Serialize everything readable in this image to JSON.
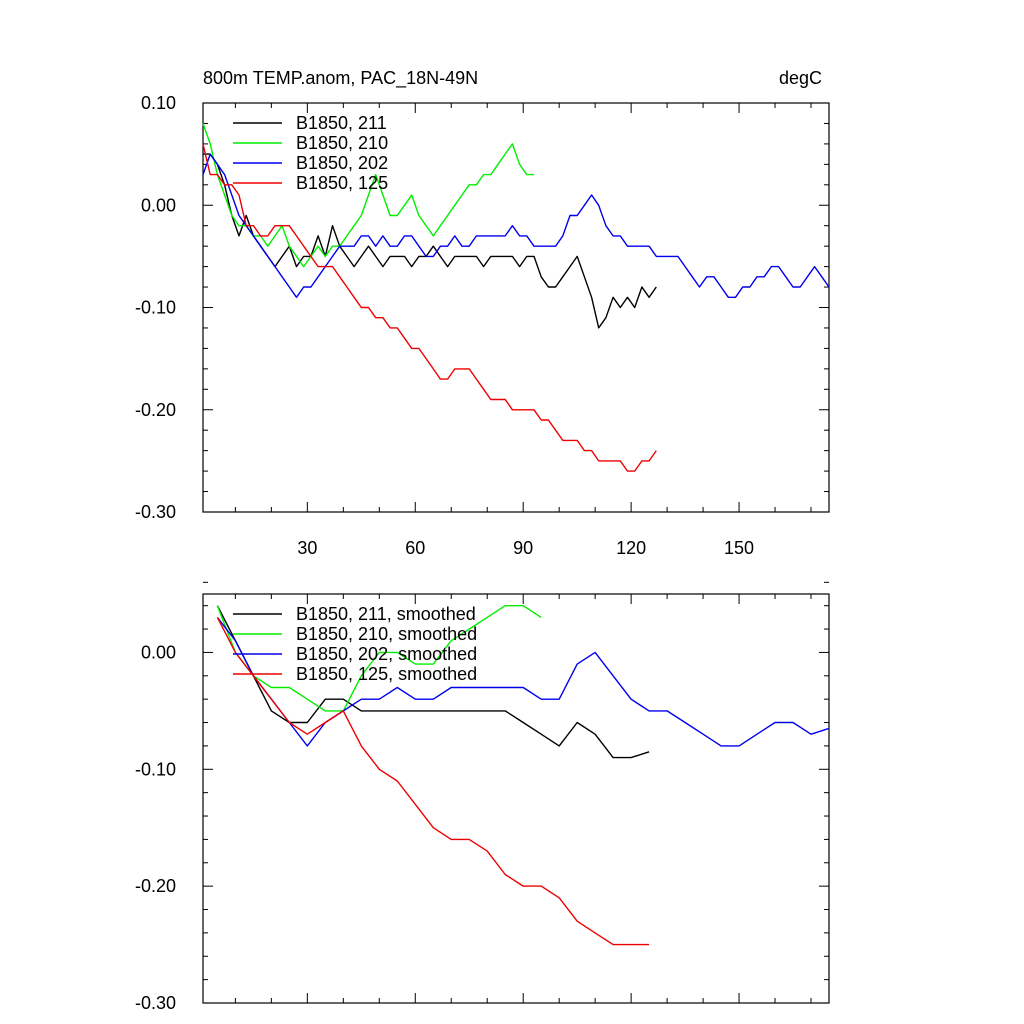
{
  "chart_data": [
    {
      "type": "line",
      "title": "800m TEMP.anom, PAC_18N-49N",
      "units": "degC",
      "xlim": [
        1,
        175
      ],
      "ylim": [
        -0.3,
        0.1
      ],
      "xticks": [
        30,
        60,
        90,
        120,
        150
      ],
      "yticks": [
        0.1,
        0.0,
        -0.1,
        -0.2,
        -0.3
      ],
      "ytick_labels": [
        "0.10",
        "0.00",
        "-0.10",
        "-0.20",
        "-0.30"
      ],
      "series": [
        {
          "name": "B1850, 211",
          "color": "#000000",
          "x": [
            1,
            3,
            5,
            7,
            9,
            11,
            13,
            15,
            17,
            19,
            21,
            23,
            25,
            27,
            29,
            31,
            33,
            35,
            37,
            39,
            41,
            43,
            45,
            47,
            49,
            51,
            53,
            55,
            57,
            59,
            61,
            63,
            65,
            67,
            69,
            71,
            73,
            75,
            77,
            79,
            81,
            83,
            85,
            87,
            89,
            91,
            93,
            95,
            97,
            99,
            101,
            103,
            105,
            107,
            109,
            111,
            113,
            115,
            117,
            119,
            121,
            123,
            125,
            127
          ],
          "y": [
            0.05,
            0.05,
            0.04,
            0.02,
            -0.01,
            -0.03,
            -0.01,
            -0.03,
            -0.04,
            -0.05,
            -0.06,
            -0.05,
            -0.04,
            -0.06,
            -0.05,
            -0.05,
            -0.03,
            -0.05,
            -0.02,
            -0.04,
            -0.05,
            -0.06,
            -0.05,
            -0.04,
            -0.05,
            -0.06,
            -0.05,
            -0.05,
            -0.05,
            -0.06,
            -0.05,
            -0.05,
            -0.04,
            -0.05,
            -0.06,
            -0.05,
            -0.05,
            -0.05,
            -0.05,
            -0.06,
            -0.05,
            -0.05,
            -0.05,
            -0.05,
            -0.06,
            -0.05,
            -0.05,
            -0.07,
            -0.08,
            -0.08,
            -0.07,
            -0.06,
            -0.05,
            -0.07,
            -0.09,
            -0.12,
            -0.11,
            -0.09,
            -0.1,
            -0.09,
            -0.1,
            -0.08,
            -0.09,
            -0.08
          ]
        },
        {
          "name": "B1850, 210",
          "color": "#00ee00",
          "x": [
            1,
            3,
            5,
            7,
            9,
            11,
            13,
            15,
            17,
            19,
            21,
            23,
            25,
            27,
            29,
            31,
            33,
            35,
            37,
            39,
            41,
            43,
            45,
            47,
            49,
            51,
            53,
            55,
            57,
            59,
            61,
            63,
            65,
            67,
            69,
            71,
            73,
            75,
            77,
            79,
            81,
            83,
            85,
            87,
            89,
            91,
            93
          ],
          "y": [
            0.08,
            0.06,
            0.03,
            0.01,
            -0.01,
            -0.02,
            -0.02,
            -0.03,
            -0.03,
            -0.04,
            -0.03,
            -0.02,
            -0.04,
            -0.05,
            -0.06,
            -0.05,
            -0.04,
            -0.05,
            -0.04,
            -0.04,
            -0.03,
            -0.02,
            -0.01,
            0.01,
            0.03,
            0.01,
            -0.01,
            -0.01,
            0.0,
            0.01,
            -0.01,
            -0.02,
            -0.03,
            -0.02,
            -0.01,
            0.0,
            0.01,
            0.02,
            0.02,
            0.03,
            0.03,
            0.04,
            0.05,
            0.06,
            0.04,
            0.03,
            0.03
          ]
        },
        {
          "name": "B1850, 202",
          "color": "#0000ee",
          "x": [
            1,
            3,
            5,
            7,
            9,
            11,
            13,
            15,
            17,
            19,
            21,
            23,
            25,
            27,
            29,
            31,
            33,
            35,
            37,
            39,
            41,
            43,
            45,
            47,
            49,
            51,
            53,
            55,
            57,
            59,
            61,
            63,
            65,
            67,
            69,
            71,
            73,
            75,
            77,
            79,
            81,
            83,
            85,
            87,
            89,
            91,
            93,
            95,
            97,
            99,
            101,
            103,
            105,
            107,
            109,
            111,
            113,
            115,
            117,
            119,
            121,
            123,
            125,
            127,
            129,
            131,
            133,
            135,
            137,
            139,
            141,
            143,
            145,
            147,
            149,
            151,
            153,
            155,
            157,
            159,
            161,
            163,
            165,
            167,
            169,
            171,
            173,
            175
          ],
          "y": [
            0.03,
            0.05,
            0.04,
            0.03,
            0.01,
            -0.01,
            -0.02,
            -0.03,
            -0.04,
            -0.05,
            -0.06,
            -0.07,
            -0.08,
            -0.09,
            -0.08,
            -0.08,
            -0.07,
            -0.06,
            -0.05,
            -0.04,
            -0.04,
            -0.04,
            -0.03,
            -0.03,
            -0.04,
            -0.03,
            -0.04,
            -0.04,
            -0.03,
            -0.03,
            -0.04,
            -0.05,
            -0.05,
            -0.04,
            -0.04,
            -0.03,
            -0.04,
            -0.04,
            -0.03,
            -0.03,
            -0.03,
            -0.03,
            -0.03,
            -0.02,
            -0.03,
            -0.03,
            -0.04,
            -0.04,
            -0.04,
            -0.04,
            -0.03,
            -0.01,
            -0.01,
            0.0,
            0.01,
            0.0,
            -0.02,
            -0.03,
            -0.03,
            -0.04,
            -0.04,
            -0.04,
            -0.04,
            -0.05,
            -0.05,
            -0.05,
            -0.05,
            -0.06,
            -0.07,
            -0.08,
            -0.07,
            -0.07,
            -0.08,
            -0.09,
            -0.09,
            -0.08,
            -0.08,
            -0.07,
            -0.07,
            -0.06,
            -0.06,
            -0.07,
            -0.08,
            -0.08,
            -0.07,
            -0.06,
            -0.07,
            -0.08
          ]
        },
        {
          "name": "B1850, 125",
          "color": "#ee0000",
          "x": [
            1,
            3,
            5,
            7,
            9,
            11,
            13,
            15,
            17,
            19,
            21,
            23,
            25,
            27,
            29,
            31,
            33,
            35,
            37,
            39,
            41,
            43,
            45,
            47,
            49,
            51,
            53,
            55,
            57,
            59,
            61,
            63,
            65,
            67,
            69,
            71,
            73,
            75,
            77,
            79,
            81,
            83,
            85,
            87,
            89,
            91,
            93,
            95,
            97,
            99,
            101,
            103,
            105,
            107,
            109,
            111,
            113,
            115,
            117,
            119,
            121,
            123,
            125,
            127
          ],
          "y": [
            0.06,
            0.03,
            0.03,
            0.02,
            0.02,
            0.01,
            -0.02,
            -0.02,
            -0.03,
            -0.03,
            -0.02,
            -0.02,
            -0.02,
            -0.03,
            -0.04,
            -0.05,
            -0.06,
            -0.06,
            -0.06,
            -0.07,
            -0.08,
            -0.09,
            -0.1,
            -0.1,
            -0.11,
            -0.11,
            -0.12,
            -0.12,
            -0.13,
            -0.14,
            -0.14,
            -0.15,
            -0.16,
            -0.17,
            -0.17,
            -0.16,
            -0.16,
            -0.16,
            -0.17,
            -0.18,
            -0.19,
            -0.19,
            -0.19,
            -0.2,
            -0.2,
            -0.2,
            -0.2,
            -0.21,
            -0.21,
            -0.22,
            -0.23,
            -0.23,
            -0.23,
            -0.24,
            -0.24,
            -0.25,
            -0.25,
            -0.25,
            -0.25,
            -0.26,
            -0.26,
            -0.25,
            -0.25,
            -0.24
          ]
        }
      ]
    },
    {
      "type": "line",
      "xlim": [
        1,
        175
      ],
      "ylim": [
        -0.3,
        0.05
      ],
      "xticks": [
        30,
        60,
        90,
        120,
        150
      ],
      "yticks": [
        0.0,
        -0.1,
        -0.2,
        -0.3
      ],
      "ytick_labels": [
        "0.00",
        "-0.10",
        "-0.20",
        "-0.30"
      ],
      "series": [
        {
          "name": "B1850, 211, smoothed",
          "color": "#000000",
          "x": [
            5,
            10,
            15,
            20,
            25,
            30,
            35,
            40,
            45,
            50,
            55,
            60,
            65,
            70,
            75,
            80,
            85,
            90,
            95,
            100,
            105,
            110,
            115,
            120,
            125
          ],
          "y": [
            0.04,
            0.01,
            -0.02,
            -0.05,
            -0.06,
            -0.06,
            -0.04,
            -0.04,
            -0.05,
            -0.05,
            -0.05,
            -0.05,
            -0.05,
            -0.05,
            -0.05,
            -0.05,
            -0.05,
            -0.06,
            -0.07,
            -0.08,
            -0.06,
            -0.07,
            -0.09,
            -0.09,
            -0.085
          ]
        },
        {
          "name": "B1850, 210, smoothed",
          "color": "#00ee00",
          "x": [
            5,
            10,
            15,
            20,
            25,
            30,
            35,
            40,
            45,
            50,
            55,
            60,
            65,
            70,
            75,
            80,
            85,
            90,
            95
          ],
          "y": [
            0.04,
            0.0,
            -0.02,
            -0.03,
            -0.03,
            -0.04,
            -0.05,
            -0.05,
            -0.02,
            0.0,
            0.0,
            -0.01,
            -0.01,
            0.01,
            0.02,
            0.03,
            0.04,
            0.04,
            0.03
          ]
        },
        {
          "name": "B1850, 202, smoothed",
          "color": "#0000ee",
          "x": [
            5,
            10,
            15,
            20,
            25,
            30,
            35,
            40,
            45,
            50,
            55,
            60,
            65,
            70,
            75,
            80,
            85,
            90,
            95,
            100,
            105,
            110,
            115,
            120,
            125,
            130,
            135,
            140,
            145,
            150,
            155,
            160,
            165,
            170,
            175
          ],
          "y": [
            0.03,
            0.01,
            -0.02,
            -0.04,
            -0.06,
            -0.08,
            -0.06,
            -0.05,
            -0.04,
            -0.04,
            -0.03,
            -0.04,
            -0.04,
            -0.03,
            -0.03,
            -0.03,
            -0.03,
            -0.03,
            -0.04,
            -0.04,
            -0.01,
            0.0,
            -0.02,
            -0.04,
            -0.05,
            -0.05,
            -0.06,
            -0.07,
            -0.08,
            -0.08,
            -0.07,
            -0.06,
            -0.06,
            -0.07,
            -0.065
          ]
        },
        {
          "name": "B1850, 125, smoothed",
          "color": "#ee0000",
          "x": [
            5,
            10,
            15,
            20,
            25,
            30,
            35,
            40,
            45,
            50,
            55,
            60,
            65,
            70,
            75,
            80,
            85,
            90,
            95,
            100,
            105,
            110,
            115,
            120,
            125
          ],
          "y": [
            0.03,
            0.0,
            -0.02,
            -0.04,
            -0.06,
            -0.07,
            -0.06,
            -0.05,
            -0.08,
            -0.1,
            -0.11,
            -0.13,
            -0.15,
            -0.16,
            -0.16,
            -0.17,
            -0.19,
            -0.2,
            -0.2,
            -0.21,
            -0.23,
            -0.24,
            -0.25,
            -0.25,
            -0.25
          ]
        }
      ]
    }
  ]
}
